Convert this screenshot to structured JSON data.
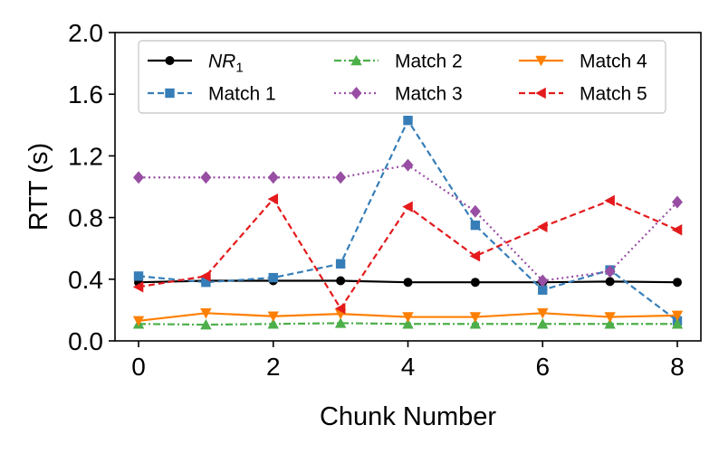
{
  "chart_data": {
    "type": "line",
    "xlabel": "Chunk Number",
    "ylabel": "RTT (s)",
    "xlim": [
      -0.35,
      8.35
    ],
    "ylim": [
      0.0,
      2.0
    ],
    "x_ticks": [
      "0",
      "2",
      "4",
      "6",
      "8"
    ],
    "y_ticks": [
      "0.0",
      "0.4",
      "0.8",
      "1.2",
      "1.6",
      "2.0"
    ],
    "grid": false,
    "legend_position": "top",
    "x": [
      0,
      1,
      2,
      3,
      4,
      5,
      6,
      7,
      8
    ],
    "series": [
      {
        "name": "NR",
        "name_sub": "1",
        "color": "#000000",
        "dash": "solid",
        "marker": "circle",
        "values": [
          0.38,
          0.39,
          0.39,
          0.39,
          0.38,
          0.38,
          0.38,
          0.385,
          0.38
        ]
      },
      {
        "name": "Match 1",
        "color": "#377eb8",
        "dash": "dashed",
        "marker": "square",
        "values": [
          0.42,
          0.38,
          0.41,
          0.5,
          1.43,
          0.75,
          0.33,
          0.46,
          0.13
        ]
      },
      {
        "name": "Match 2",
        "color": "#4daf4a",
        "dash": "dashdot",
        "marker": "triangle-up",
        "values": [
          0.11,
          0.105,
          0.11,
          0.115,
          0.11,
          0.11,
          0.11,
          0.11,
          0.11
        ]
      },
      {
        "name": "Match 3",
        "color": "#984ea3",
        "dash": "dotted",
        "marker": "diamond",
        "values": [
          1.06,
          1.06,
          1.06,
          1.06,
          1.14,
          0.84,
          0.39,
          0.45,
          0.9
        ]
      },
      {
        "name": "Match 4",
        "color": "#ff7f00",
        "dash": "solid",
        "marker": "triangle-down",
        "values": [
          0.13,
          0.18,
          0.16,
          0.175,
          0.155,
          0.155,
          0.18,
          0.155,
          0.165
        ]
      },
      {
        "name": "Match 5",
        "color": "#e41a1c",
        "dash": "dashed",
        "marker": "triangle-left",
        "values": [
          0.35,
          0.42,
          0.92,
          0.21,
          0.87,
          0.55,
          0.74,
          0.91,
          0.72
        ]
      }
    ]
  }
}
